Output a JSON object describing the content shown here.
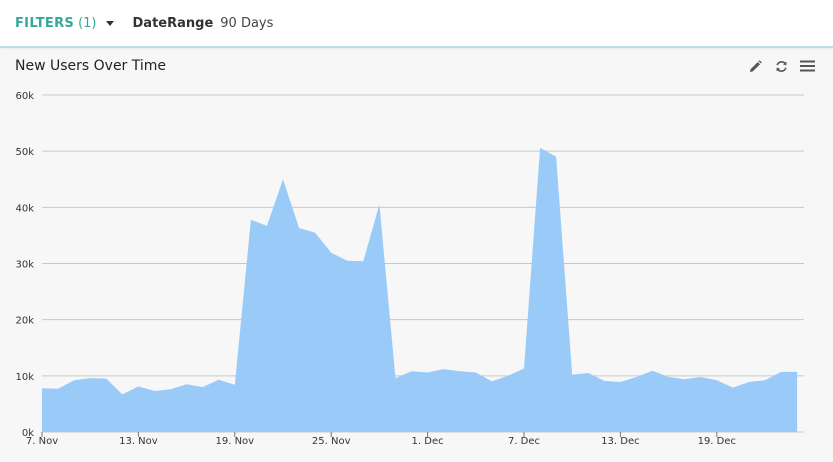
{
  "filter_bar": {
    "filters_label": "FILTERS",
    "filters_count": "(1)",
    "date_range_key": "DateRange",
    "date_range_value": "90 Days"
  },
  "panel": {
    "title": "New Users Over Time",
    "icons": [
      "pencil-icon",
      "refresh-icon",
      "menu-icon"
    ]
  },
  "colors": {
    "accent": "#35a89a",
    "area_fill": "#99caf8",
    "grid": "#c8c8c8"
  },
  "chart_data": {
    "type": "area",
    "title": "New Users Over Time",
    "xlabel": "",
    "ylabel": "",
    "ylim": [
      0,
      60000
    ],
    "y_ticks": [
      "0k",
      "10k",
      "20k",
      "30k",
      "40k",
      "50k",
      "60k"
    ],
    "x_ticks": [
      "7. Nov",
      "13. Nov",
      "19. Nov",
      "25. Nov",
      "1. Dec",
      "7. Dec",
      "13. Dec",
      "19. Dec"
    ],
    "x_start": "7. Nov",
    "x_end": "23. Dec",
    "grid": true,
    "legend": "none",
    "values": [
      7800,
      7700,
      9200,
      9600,
      9500,
      6700,
      8100,
      7300,
      7600,
      8500,
      8000,
      9300,
      8400,
      37800,
      36700,
      45000,
      36300,
      35500,
      31900,
      30500,
      30400,
      40500,
      9600,
      10800,
      10600,
      11200,
      10800,
      10600,
      9000,
      10000,
      11300,
      50600,
      49000,
      10200,
      10500,
      9100,
      8900,
      9800,
      10900,
      9800,
      9400,
      9800,
      9200,
      7900,
      8900,
      9200,
      10700,
      10700
    ]
  }
}
